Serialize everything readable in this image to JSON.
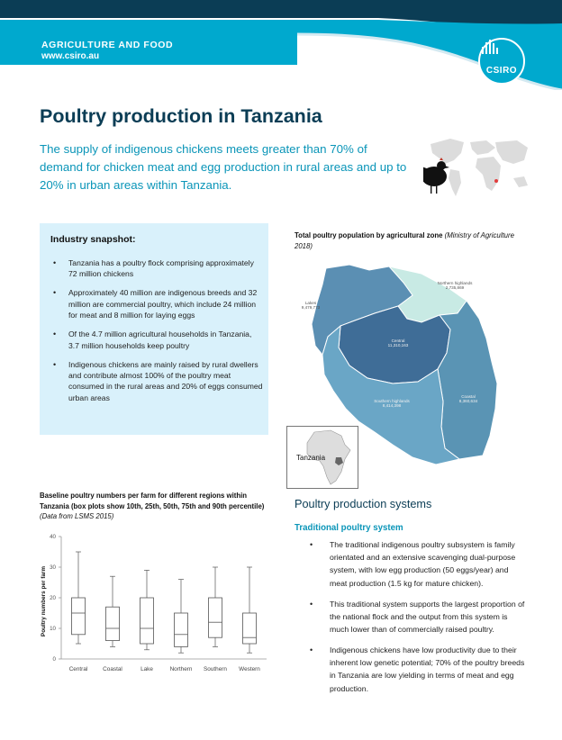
{
  "header": {
    "category": "AGRICULTURE AND FOOD",
    "url": "www.csiro.au",
    "logo_text": "CSIRO",
    "colors": {
      "dark_band": "#0b3d55",
      "accent": "#00a9ce"
    }
  },
  "title": "Poultry production in Tanzania",
  "lede": "The supply of indigenous chickens meets greater than 70% of demand for chicken meat and egg production in rural areas and up to 20% in urban areas within Tanzania.",
  "snapshot": {
    "title": "Industry snapshot:",
    "items": [
      "Tanzania has a poultry flock comprising approximately 72 million chickens",
      "Approximately 40 million are indigenous breeds and 32 million are commercial poultry, which include 24 million for meat and 8 million for laying eggs",
      "Of the 4.7 million agricultural households in Tanzania, 3.7 million households keep poultry",
      "Indigenous chickens are mainly raised by rural dwellers and contribute almost 100% of the poultry meat consumed in the rural areas and 20% of eggs consumed urban areas"
    ]
  },
  "map": {
    "caption_bold": "Total poultry population by agricultural zone",
    "caption_italic": "(Ministry of Agriculture 2018)",
    "inset_label": "Tanzania",
    "zones": [
      {
        "name": "Northern highlands",
        "value": "2,735,869",
        "color": "#c8eae4"
      },
      {
        "name": "Lakes",
        "value": "9,479,773",
        "color": "#5b8fb3"
      },
      {
        "name": "Central",
        "value": "11,310,163",
        "color": "#3f6d97"
      },
      {
        "name": "Southern highlands",
        "value": "8,414,398",
        "color": "#6aa6c6"
      },
      {
        "name": "Coastal",
        "value": "8,360,634",
        "color": "#5a94b4"
      }
    ]
  },
  "chart": {
    "caption_bold": "Baseline poultry numbers per farm for different regions within Tanzania (box plots show 10th, 25th, 50th, 75th and 90th percentile)",
    "caption_italic": "(Data from LSMS 2015)"
  },
  "chart_data": {
    "type": "boxplot",
    "title": "",
    "xlabel": "",
    "ylabel": "Poultry numbers per farm",
    "ylim": [
      0,
      40
    ],
    "yticks": [
      0,
      10,
      20,
      30,
      40
    ],
    "grid": false,
    "categories": [
      "Central",
      "Coastal",
      "Lake",
      "Northern",
      "Southern",
      "Western"
    ],
    "series": [
      {
        "p10": 5,
        "p25": 8,
        "p50": 15,
        "p75": 20,
        "p90": 35
      },
      {
        "p10": 4,
        "p25": 6,
        "p50": 10,
        "p75": 17,
        "p90": 27
      },
      {
        "p10": 3,
        "p25": 5,
        "p50": 10,
        "p75": 20,
        "p90": 29
      },
      {
        "p10": 2,
        "p25": 4,
        "p50": 8,
        "p75": 15,
        "p90": 26
      },
      {
        "p10": 4,
        "p25": 7,
        "p50": 12,
        "p75": 20,
        "p90": 30
      },
      {
        "p10": 2,
        "p25": 5,
        "p50": 7,
        "p75": 15,
        "p90": 30
      }
    ]
  },
  "systems": {
    "heading": "Poultry production systems",
    "subheading": "Traditional poultry system",
    "items": [
      "The traditional indigenous poultry subsystem is family orientated and an extensive scavenging dual-purpose system, with low egg production (50 eggs/year) and meat production (1.5 kg for mature chicken).",
      "This traditional system supports the largest proportion of the national flock and the output from this system is much lower than of commercially raised poultry.",
      "Indigenous chickens have low productivity due to their inherent low genetic potential; 70% of the poultry breeds in Tanzania are low yielding in terms of meat and egg production."
    ]
  }
}
